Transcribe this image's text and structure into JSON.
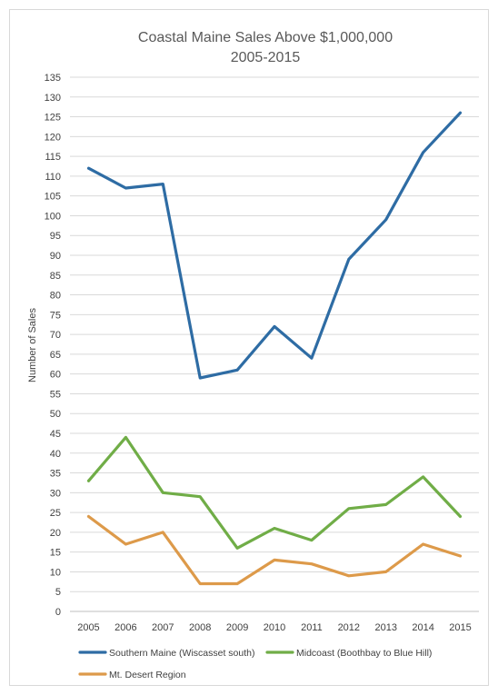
{
  "chart_data": {
    "type": "line",
    "title": "Coastal Maine Sales Above $1,000,000",
    "subtitle": "2005-2015",
    "xlabel": "",
    "ylabel": "Number of Sales",
    "ylim": [
      0,
      135
    ],
    "ytick_step": 5,
    "grid": true,
    "legend_position": "bottom",
    "categories": [
      "2005",
      "2006",
      "2007",
      "2008",
      "2009",
      "2010",
      "2011",
      "2012",
      "2013",
      "2014",
      "2015"
    ],
    "series": [
      {
        "name": "Southern Maine (Wiscasset south)",
        "color": "#2e6ca4",
        "values": [
          112,
          107,
          108,
          59,
          61,
          72,
          64,
          89,
          99,
          116,
          126
        ]
      },
      {
        "name": "Midcoast (Boothbay to Blue Hill)",
        "color": "#70ad47",
        "values": [
          33,
          44,
          30,
          29,
          16,
          21,
          18,
          26,
          27,
          34,
          24
        ]
      },
      {
        "name": "Mt. Desert Region",
        "color": "#dd9a4a",
        "values": [
          24,
          17,
          20,
          7,
          7,
          13,
          12,
          9,
          10,
          17,
          14
        ]
      }
    ]
  }
}
